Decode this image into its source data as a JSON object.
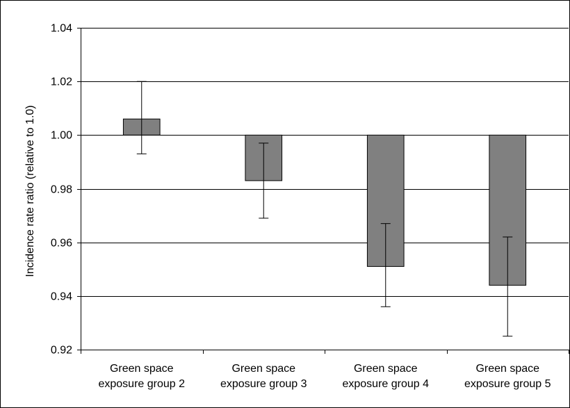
{
  "chart_data": {
    "type": "bar",
    "title": "",
    "xlabel": "",
    "ylabel": "Incidence rate ratio (relative to 1.0)",
    "ylim": [
      0.92,
      1.04
    ],
    "yticks": [
      0.92,
      0.94,
      0.96,
      0.98,
      1.0,
      1.02,
      1.04
    ],
    "ytick_labels": [
      "0.92",
      "0.94",
      "0.96",
      "0.98",
      "1.00",
      "1.02",
      "1.04"
    ],
    "baseline": 1.0,
    "grid": true,
    "bar_color": "#808080",
    "categories": [
      [
        "Green space",
        "exposure group 2"
      ],
      [
        "Green space",
        "exposure group 3"
      ],
      [
        "Green space",
        "exposure group 4"
      ],
      [
        "Green space",
        "exposure group 5"
      ]
    ],
    "values": [
      1.006,
      0.983,
      0.951,
      0.944
    ],
    "error_low": [
      0.993,
      0.969,
      0.936,
      0.925
    ],
    "error_high": [
      1.02,
      0.997,
      0.967,
      0.962
    ]
  }
}
